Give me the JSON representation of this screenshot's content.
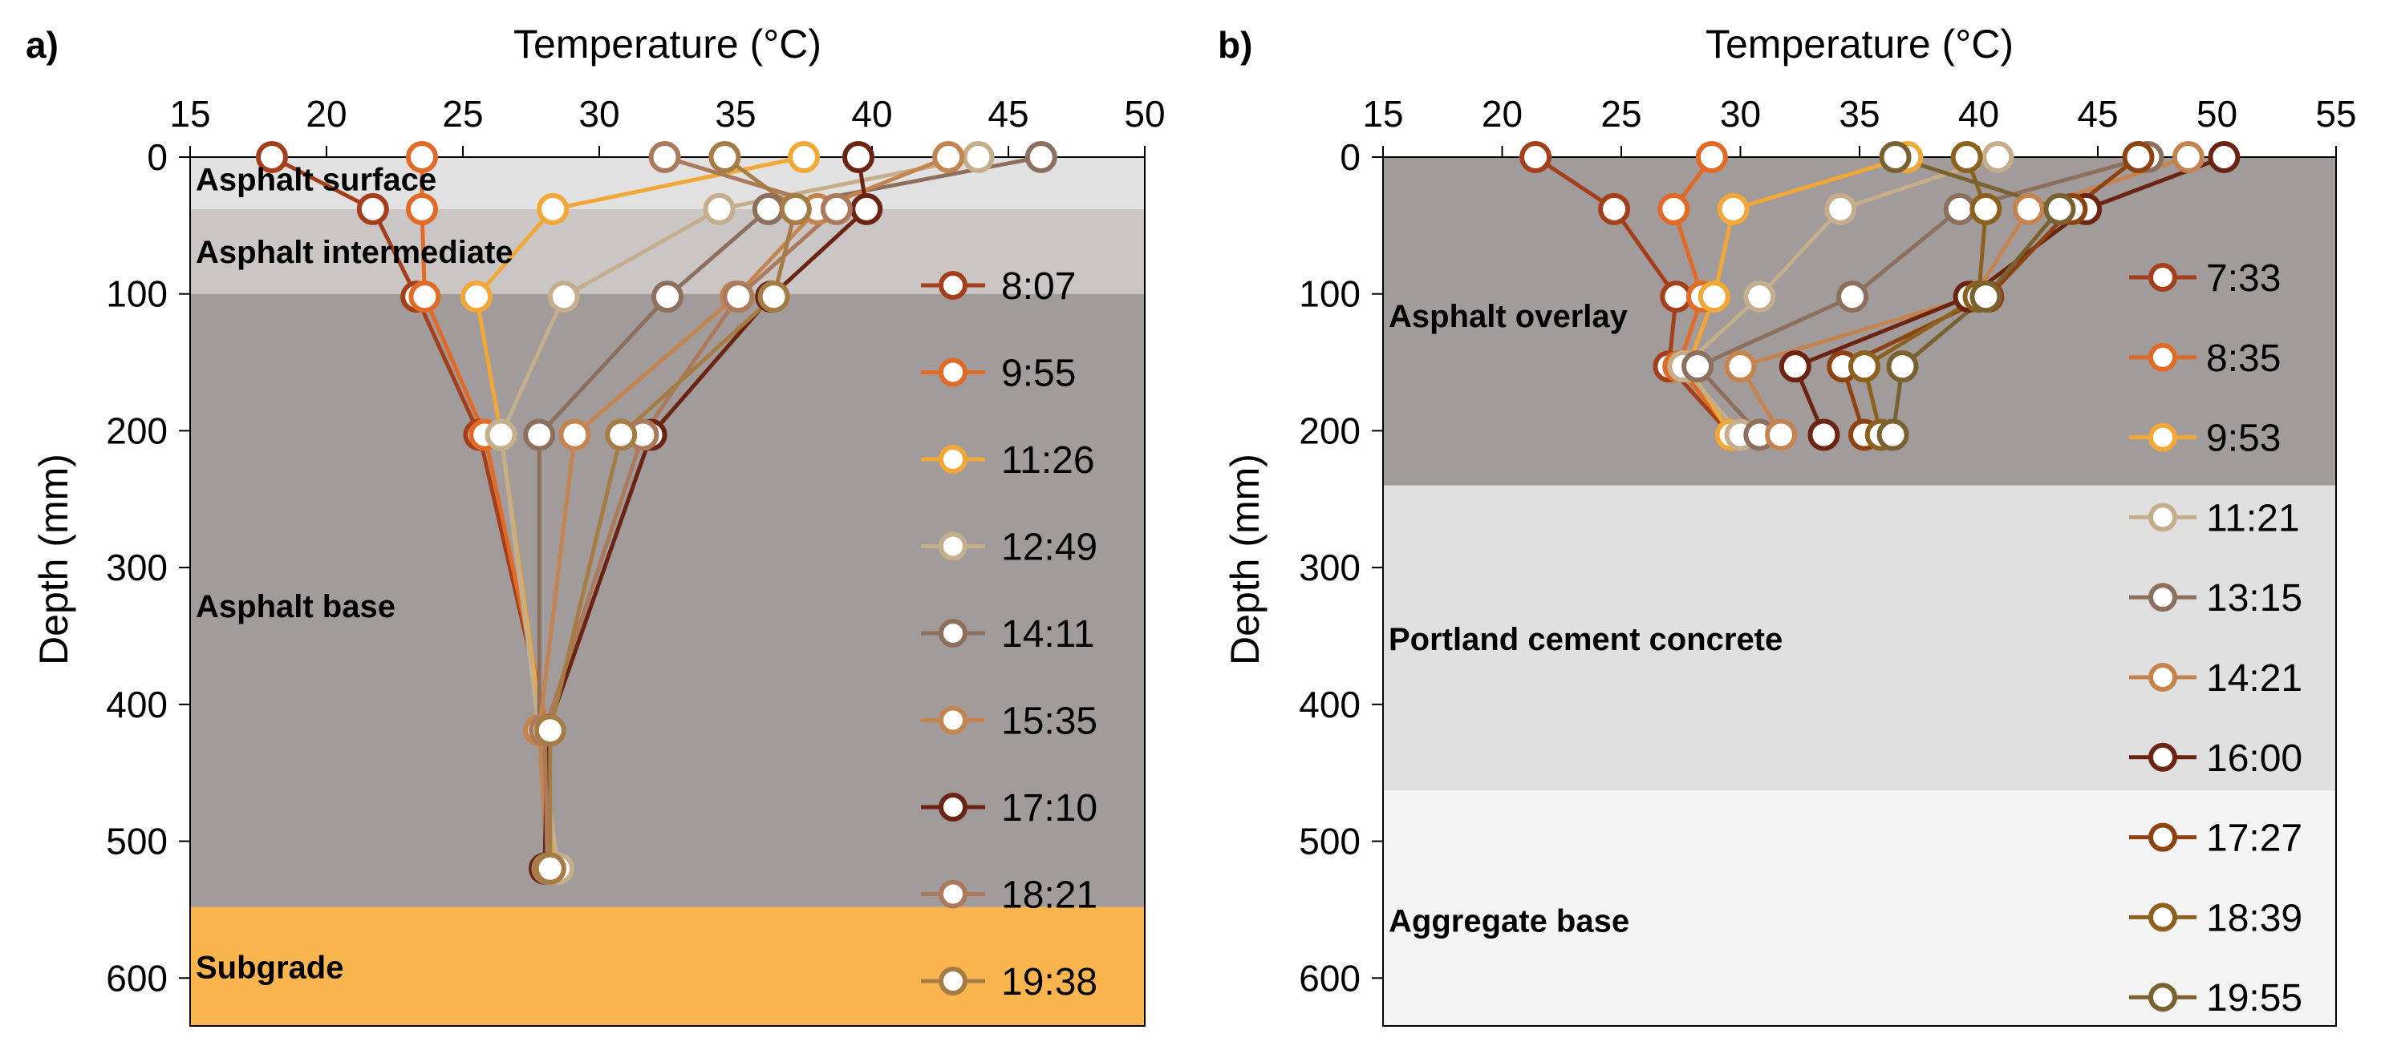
{
  "chart_data": [
    {
      "panel_label": "a)",
      "type": "line",
      "xlabel": "Temperature (°C)",
      "ylabel": "Depth (mm)",
      "xlim": [
        15,
        50
      ],
      "ylim": [
        0,
        635
      ],
      "xticks": [
        15,
        20,
        25,
        30,
        35,
        40,
        45,
        50
      ],
      "yticks": [
        0,
        100,
        200,
        300,
        400,
        500,
        600
      ],
      "x_axis_position": "top",
      "y_inverted": true,
      "layers": [
        {
          "name": "Asphalt surface",
          "top": 0,
          "bottom": 38,
          "color": "#e2e1e1"
        },
        {
          "name": "Asphalt intermediate",
          "top": 38,
          "bottom": 100,
          "color": "#cbc6c6"
        },
        {
          "name": "Asphalt base",
          "top": 100,
          "bottom": 548,
          "color": "#a19b9b"
        },
        {
          "name": "Subgrade",
          "top": 548,
          "bottom": 635,
          "color": "#fbb54e"
        }
      ],
      "layer_label_depths": [
        16,
        69,
        328,
        592
      ],
      "depths": [
        0,
        38,
        102,
        203,
        419,
        520
      ],
      "series": [
        {
          "name": "8:07",
          "color": "#a43f1b",
          "values": [
            18.0,
            21.7,
            23.3,
            25.6,
            28.1,
            28.0
          ]
        },
        {
          "name": "9:55",
          "color": "#e06a26",
          "values": [
            23.5,
            23.5,
            23.6,
            25.8,
            28.1,
            28.2
          ]
        },
        {
          "name": "11:26",
          "color": "#f1a836",
          "values": [
            37.5,
            28.3,
            25.5,
            26.4,
            27.9,
            28.3
          ]
        },
        {
          "name": "12:49",
          "color": "#c4ae8c",
          "values": [
            43.9,
            34.4,
            28.7,
            26.4,
            27.8,
            28.5
          ]
        },
        {
          "name": "14:11",
          "color": "#8c6f5c",
          "values": [
            46.2,
            36.2,
            32.5,
            27.8,
            27.8,
            28.2
          ]
        },
        {
          "name": "15:35",
          "color": "#c4844f",
          "values": [
            42.8,
            38.0,
            35.0,
            29.1,
            27.8,
            28.1
          ]
        },
        {
          "name": "17:10",
          "color": "#6b2312",
          "values": [
            39.5,
            39.8,
            36.3,
            31.9,
            28.1,
            28.0
          ]
        },
        {
          "name": "18:21",
          "color": "#ab7a5d",
          "values": [
            32.4,
            38.7,
            35.1,
            31.6,
            28.0,
            28.1
          ]
        },
        {
          "name": "19:38",
          "color": "#a57c43",
          "values": [
            34.6,
            37.2,
            36.4,
            30.8,
            28.2,
            28.2
          ]
        }
      ]
    },
    {
      "panel_label": "b)",
      "type": "line",
      "xlabel": "Temperature (°C)",
      "ylabel": "Depth (mm)",
      "xlim": [
        15,
        55
      ],
      "ylim": [
        0,
        635
      ],
      "xticks": [
        15,
        20,
        25,
        30,
        35,
        40,
        45,
        50,
        55
      ],
      "yticks": [
        0,
        100,
        200,
        300,
        400,
        500,
        600
      ],
      "x_axis_position": "top",
      "y_inverted": true,
      "layers": [
        {
          "name": "Asphalt overlay",
          "top": 0,
          "bottom": 240,
          "color": "#a19b9b"
        },
        {
          "name": "Portland cement concrete",
          "top": 240,
          "bottom": 463,
          "color": "#e1e0e0"
        },
        {
          "name": "Aggregate base",
          "top": 463,
          "bottom": 635,
          "color": "#f4f4f4"
        }
      ],
      "layer_label_depths": [
        116,
        352,
        558
      ],
      "depths": [
        0,
        38,
        102,
        153,
        203
      ],
      "series": [
        {
          "name": "7:33",
          "color": "#a43f1b",
          "values": [
            21.4,
            24.7,
            27.3,
            27.0,
            29.6
          ]
        },
        {
          "name": "8:35",
          "color": "#e06a26",
          "values": [
            28.8,
            27.2,
            28.4,
            27.4,
            29.7
          ]
        },
        {
          "name": "9:53",
          "color": "#f1a836",
          "values": [
            37.0,
            29.7,
            28.9,
            27.8,
            29.6
          ]
        },
        {
          "name": "11:21",
          "color": "#c4ae8c",
          "values": [
            40.8,
            34.2,
            30.8,
            27.6,
            30.0
          ]
        },
        {
          "name": "13:15",
          "color": "#8c6f5c",
          "values": [
            47.1,
            39.2,
            34.7,
            28.2,
            30.8
          ]
        },
        {
          "name": "14:21",
          "color": "#c4844f",
          "values": [
            48.8,
            42.1,
            39.8,
            30.0,
            31.7
          ]
        },
        {
          "name": "16:00",
          "color": "#6b2312",
          "values": [
            50.3,
            44.5,
            39.6,
            32.3,
            33.5
          ]
        },
        {
          "name": "17:27",
          "color": "#8c4311",
          "values": [
            46.7,
            43.9,
            40.4,
            34.3,
            35.2
          ]
        },
        {
          "name": "18:39",
          "color": "#8c611e",
          "values": [
            39.5,
            40.3,
            40.0,
            35.2,
            35.9
          ]
        },
        {
          "name": "19:55",
          "color": "#7a6230",
          "values": [
            36.5,
            43.4,
            40.3,
            36.8,
            36.4
          ]
        }
      ]
    }
  ]
}
